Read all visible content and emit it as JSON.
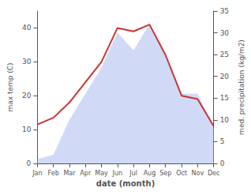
{
  "chart_data": {
    "type": "line",
    "xlabel": "date (month)",
    "ylabel": "max temp (C)",
    "y2label": "med. precipitation (kg/m2)",
    "categories": [
      "Jan",
      "Feb",
      "Mar",
      "Apr",
      "May",
      "Jun",
      "Jul",
      "Aug",
      "Sep",
      "Oct",
      "Nov",
      "Dec"
    ],
    "series": [
      {
        "type": "area",
        "color": "#aabbee",
        "axis": "y2",
        "values": [
          1,
          2,
          10,
          16,
          22,
          30,
          26,
          32,
          25,
          16,
          16,
          8
        ]
      },
      {
        "type": "line",
        "color": "#cc3333",
        "values": [
          11.5,
          13.5,
          18,
          24,
          30,
          40,
          39,
          41,
          32,
          20,
          19,
          11
        ]
      }
    ],
    "ylim": [
      0,
      45
    ],
    "yticks": [
      0,
      10,
      20,
      30,
      40
    ],
    "y2lim": [
      0,
      35
    ],
    "y2ticks": [
      0,
      5,
      10,
      15,
      20,
      25,
      30,
      35
    ],
    "grid": false
  }
}
